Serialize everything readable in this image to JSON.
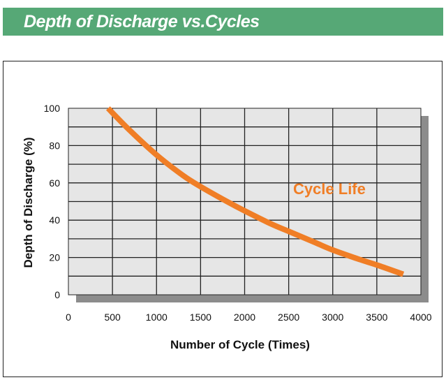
{
  "header": {
    "title": "Depth of Discharge vs.Cycles"
  },
  "chart_data": {
    "type": "line",
    "title": "",
    "xlabel": "Number of Cycle (Times)",
    "ylabel": "Depth of Discharge (%)",
    "xlim": [
      0,
      4000
    ],
    "ylim": [
      0,
      100
    ],
    "x_ticks": [
      "0",
      "500",
      "1000",
      "1500",
      "2000",
      "2500",
      "3000",
      "3500",
      "4000"
    ],
    "y_ticks": [
      "0",
      "20",
      "40",
      "60",
      "80",
      "100"
    ],
    "grid": true,
    "plot_background": "#e6e6e6",
    "shadow_color": "#8c8c8c",
    "series": [
      {
        "name": "Cycle Life",
        "color": "#f07e26",
        "x": [
          450,
          700,
          1000,
          1300,
          1500,
          1800,
          2000,
          2300,
          2500,
          2800,
          3000,
          3300,
          3500,
          3800
        ],
        "y": [
          100,
          88,
          75,
          64,
          58,
          50,
          45,
          38,
          34,
          28,
          24,
          19,
          16,
          11
        ]
      }
    ],
    "annotation": {
      "text": "Cycle Life",
      "x": 2550,
      "y": 57,
      "color": "#f07e26"
    }
  }
}
